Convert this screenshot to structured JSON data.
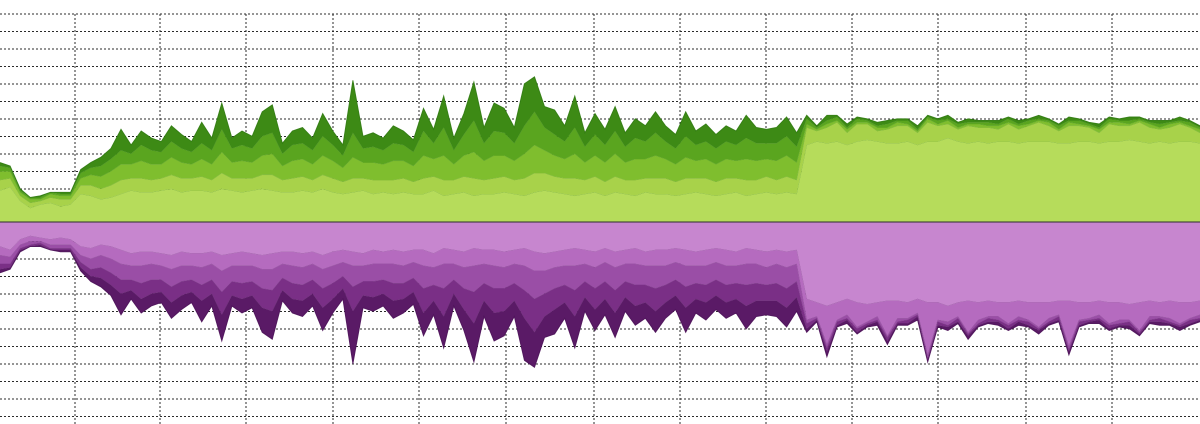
{
  "chart_data": {
    "type": "area",
    "title": "",
    "xlabel": "",
    "ylabel": "",
    "grid": true,
    "legend": "none",
    "xlim": [
      0,
      120
    ],
    "ylim": [
      -110,
      110
    ],
    "colors": {
      "upper": [
        "#b6dc5b",
        "#a8d24a",
        "#7fbe2e",
        "#5aa51f",
        "#3d8a15"
      ],
      "upper_outline": "#2f7a10",
      "lower": [
        "#c786cf",
        "#b56bbf",
        "#9a4ea6",
        "#7a2f86",
        "#5a1a66"
      ],
      "lower_outline": "#4a1056"
    },
    "series_upper": [
      {
        "values": [
          18,
          20,
          12,
          8,
          10,
          11,
          9,
          10,
          16,
          15,
          13,
          14,
          16,
          18,
          17,
          17,
          18,
          19,
          17,
          18,
          18,
          17,
          19,
          18,
          17,
          18,
          19,
          18,
          17,
          17,
          18,
          17,
          19,
          17,
          16,
          17,
          18,
          16,
          17,
          16,
          17,
          16,
          16,
          18,
          15,
          16,
          17,
          15,
          16,
          16,
          17,
          16,
          15,
          17,
          18,
          17,
          16,
          15,
          16,
          17,
          15,
          17,
          16,
          15,
          17,
          16,
          16,
          15,
          16,
          17,
          16,
          15,
          16,
          17,
          15,
          16,
          17,
          16,
          17,
          16,
          44,
          46,
          45,
          46,
          44,
          46,
          47,
          46,
          45,
          45,
          46,
          44,
          46,
          46,
          48,
          46,
          45,
          46,
          45,
          46,
          46,
          45,
          46,
          46,
          46,
          45,
          45,
          46,
          46,
          45,
          46,
          46,
          47,
          46,
          45,
          46,
          45,
          46,
          46,
          45
        ]
      },
      {
        "values": [
          6,
          5,
          3,
          3,
          2,
          3,
          4,
          3,
          5,
          6,
          6,
          7,
          8,
          7,
          8,
          7,
          7,
          8,
          8,
          7,
          8,
          7,
          9,
          7,
          8,
          7,
          8,
          9,
          7,
          8,
          8,
          7,
          8,
          8,
          7,
          8,
          7,
          8,
          7,
          8,
          8,
          7,
          9,
          8,
          9,
          8,
          9,
          10,
          8,
          9,
          9,
          8,
          10,
          11,
          10,
          9,
          9,
          10,
          8,
          9,
          8,
          9,
          8,
          9,
          8,
          9,
          9,
          8,
          9,
          8,
          9,
          8,
          9,
          8,
          9,
          8,
          9,
          8,
          9,
          8,
          10,
          6,
          9,
          11,
          7,
          10,
          9,
          6,
          8,
          10,
          9,
          7,
          11,
          9,
          8,
          7,
          10,
          8,
          9,
          7,
          10,
          8,
          9,
          11,
          9,
          7,
          10,
          9,
          8,
          6,
          10,
          9,
          8,
          11,
          9,
          7,
          9,
          10,
          8,
          6
        ]
      },
      {
        "values": [
          5,
          4,
          2,
          2,
          1,
          2,
          2,
          2,
          4,
          6,
          7,
          8,
          9,
          8,
          10,
          9,
          8,
          10,
          9,
          8,
          10,
          9,
          12,
          9,
          10,
          9,
          11,
          12,
          8,
          10,
          10,
          9,
          11,
          10,
          8,
          12,
          9,
          10,
          9,
          11,
          10,
          9,
          13,
          10,
          14,
          9,
          12,
          15,
          11,
          13,
          12,
          11,
          14,
          16,
          13,
          12,
          11,
          14,
          10,
          12,
          11,
          13,
          10,
          12,
          11,
          13,
          11,
          10,
          12,
          10,
          11,
          10,
          11,
          10,
          12,
          11,
          10,
          11,
          12,
          10,
          2,
          1,
          2,
          1,
          2,
          1,
          1,
          2,
          1,
          2,
          1,
          1,
          2,
          1,
          2,
          1,
          1,
          2,
          1,
          2,
          1,
          2,
          1,
          1,
          2,
          1,
          2,
          1,
          1,
          2,
          1,
          2,
          1,
          1,
          2,
          1,
          2,
          1,
          1,
          2
        ]
      },
      {
        "values": [
          3,
          2,
          1,
          1,
          1,
          1,
          1,
          1,
          3,
          4,
          6,
          7,
          8,
          6,
          9,
          8,
          7,
          9,
          8,
          7,
          9,
          8,
          13,
          8,
          9,
          8,
          11,
          12,
          7,
          9,
          9,
          8,
          11,
          9,
          7,
          14,
          8,
          9,
          8,
          10,
          9,
          8,
          14,
          9,
          16,
          8,
          12,
          18,
          10,
          14,
          13,
          10,
          16,
          19,
          13,
          12,
          10,
          15,
          9,
          12,
          10,
          13,
          9,
          12,
          10,
          13,
          10,
          9,
          12,
          9,
          10,
          9,
          10,
          9,
          12,
          10,
          9,
          10,
          11,
          9,
          3,
          1,
          2,
          2,
          1,
          2,
          1,
          1,
          2,
          1,
          2,
          1,
          1,
          2,
          1,
          2,
          1,
          1,
          2,
          1,
          2,
          1,
          2,
          1,
          1,
          2,
          1,
          2,
          1,
          1,
          2,
          1,
          2,
          1,
          1,
          2,
          1,
          1,
          2,
          1
        ]
      },
      {
        "values": [
          2,
          1,
          1,
          0,
          1,
          0,
          1,
          1,
          2,
          3,
          5,
          6,
          12,
          5,
          8,
          7,
          6,
          9,
          8,
          6,
          12,
          7,
          15,
          6,
          8,
          7,
          14,
          16,
          6,
          8,
          9,
          7,
          13,
          8,
          6,
          30,
          7,
          8,
          7,
          10,
          8,
          7,
          13,
          8,
          18,
          7,
          12,
          22,
          9,
          16,
          14,
          9,
          24,
          20,
          12,
          14,
          9,
          18,
          8,
          12,
          9,
          14,
          8,
          11,
          9,
          12,
          9,
          8,
          14,
          8,
          10,
          8,
          9,
          8,
          13,
          9,
          8,
          9,
          11,
          8,
          2,
          1,
          3,
          1,
          2,
          1,
          1,
          2,
          2,
          1,
          1,
          2,
          1,
          1,
          2,
          1,
          2,
          1,
          1,
          2,
          1,
          2,
          1,
          2,
          1,
          1,
          2,
          1,
          1,
          2,
          1,
          1,
          2,
          1,
          1,
          2,
          1,
          2,
          1,
          1
        ]
      }
    ],
    "series_lower": [
      {
        "values": [
          -14,
          -16,
          -10,
          -8,
          -9,
          -10,
          -9,
          -10,
          -14,
          -15,
          -13,
          -14,
          -16,
          -18,
          -17,
          -17,
          -18,
          -19,
          -17,
          -18,
          -18,
          -17,
          -19,
          -18,
          -17,
          -18,
          -19,
          -18,
          -17,
          -17,
          -18,
          -17,
          -19,
          -17,
          -16,
          -17,
          -18,
          -16,
          -17,
          -16,
          -17,
          -16,
          -16,
          -18,
          -15,
          -16,
          -17,
          -15,
          -16,
          -16,
          -17,
          -16,
          -15,
          -17,
          -18,
          -17,
          -16,
          -15,
          -16,
          -17,
          -15,
          -17,
          -16,
          -15,
          -17,
          -16,
          -16,
          -15,
          -16,
          -17,
          -16,
          -15,
          -16,
          -17,
          -15,
          -16,
          -17,
          -16,
          -17,
          -16,
          -44,
          -46,
          -48,
          -46,
          -44,
          -46,
          -47,
          -46,
          -45,
          -45,
          -46,
          -44,
          -46,
          -46,
          -48,
          -46,
          -45,
          -46,
          -45,
          -46,
          -46,
          -45,
          -46,
          -46,
          -46,
          -45,
          -45,
          -46,
          -46,
          -45,
          -46,
          -46,
          -47,
          -46,
          -45,
          -46,
          -45,
          -46,
          -46,
          -45
        ]
      },
      {
        "values": [
          -5,
          -4,
          -3,
          -3,
          -2,
          -3,
          -4,
          -3,
          -5,
          -6,
          -6,
          -7,
          -8,
          -7,
          -8,
          -7,
          -7,
          -8,
          -8,
          -7,
          -8,
          -7,
          -9,
          -7,
          -8,
          -7,
          -8,
          -9,
          -7,
          -8,
          -8,
          -7,
          -8,
          -8,
          -7,
          -8,
          -7,
          -8,
          -7,
          -8,
          -8,
          -7,
          -9,
          -8,
          -9,
          -8,
          -9,
          -10,
          -8,
          -9,
          -9,
          -8,
          -10,
          -11,
          -10,
          -9,
          -9,
          -10,
          -8,
          -9,
          -8,
          -9,
          -8,
          -9,
          -8,
          -9,
          -9,
          -8,
          -9,
          -8,
          -9,
          -8,
          -9,
          -8,
          -9,
          -8,
          -9,
          -8,
          -9,
          -8,
          -12,
          -8,
          -22,
          -10,
          -9,
          -14,
          -10,
          -8,
          -20,
          -10,
          -9,
          -8,
          -30,
          -10,
          -9,
          -8,
          -18,
          -10,
          -9,
          -8,
          -12,
          -9,
          -10,
          -14,
          -9,
          -8,
          -26,
          -10,
          -9,
          -8,
          -12,
          -10,
          -9,
          -16,
          -9,
          -8,
          -10,
          -12,
          -9,
          -8
        ]
      },
      {
        "values": [
          -5,
          -4,
          -2,
          -2,
          -1,
          -2,
          -2,
          -2,
          -4,
          -6,
          -7,
          -8,
          -9,
          -8,
          -10,
          -9,
          -8,
          -10,
          -9,
          -8,
          -10,
          -9,
          -12,
          -9,
          -10,
          -9,
          -11,
          -12,
          -8,
          -10,
          -10,
          -9,
          -11,
          -10,
          -8,
          -12,
          -9,
          -10,
          -9,
          -11,
          -10,
          -9,
          -13,
          -10,
          -14,
          -9,
          -12,
          -15,
          -11,
          -13,
          -12,
          -11,
          -14,
          -16,
          -13,
          -12,
          -11,
          -14,
          -10,
          -12,
          -11,
          -13,
          -10,
          -12,
          -11,
          -13,
          -11,
          -10,
          -12,
          -10,
          -11,
          -10,
          -11,
          -10,
          -12,
          -11,
          -10,
          -11,
          -12,
          -10,
          -2,
          -1,
          -2,
          -1,
          -2,
          -1,
          -1,
          -2,
          -1,
          -2,
          -1,
          -1,
          -2,
          -1,
          -2,
          -1,
          -1,
          -2,
          -1,
          -2,
          -1,
          -2,
          -1,
          -1,
          -2,
          -1,
          -2,
          -1,
          -1,
          -2,
          -1,
          -2,
          -1,
          -1,
          -2,
          -1,
          -2,
          -1,
          -1,
          -2
        ]
      },
      {
        "values": [
          -3,
          -2,
          -1,
          -1,
          -1,
          -1,
          -1,
          -1,
          -3,
          -4,
          -6,
          -7,
          -8,
          -6,
          -9,
          -8,
          -7,
          -9,
          -8,
          -7,
          -9,
          -8,
          -13,
          -8,
          -9,
          -8,
          -11,
          -12,
          -7,
          -9,
          -9,
          -8,
          -11,
          -9,
          -7,
          -14,
          -8,
          -9,
          -8,
          -10,
          -9,
          -8,
          -14,
          -9,
          -16,
          -8,
          -12,
          -18,
          -10,
          -14,
          -13,
          -10,
          -16,
          -19,
          -13,
          -12,
          -10,
          -15,
          -9,
          -12,
          -10,
          -13,
          -9,
          -12,
          -10,
          -13,
          -10,
          -9,
          -12,
          -9,
          -10,
          -9,
          -10,
          -9,
          -12,
          -10,
          -9,
          -10,
          -11,
          -9,
          -3,
          -1,
          -2,
          -2,
          -1,
          -2,
          -1,
          -1,
          -2,
          -1,
          -2,
          -1,
          -1,
          -2,
          -1,
          -2,
          -1,
          -1,
          -2,
          -1,
          -2,
          -1,
          -2,
          -1,
          -1,
          -2,
          -1,
          -2,
          -1,
          -1,
          -2,
          -1,
          -2,
          -1,
          -1,
          -2,
          -1,
          -1,
          -2,
          -1
        ]
      },
      {
        "values": [
          -2,
          -1,
          -1,
          0,
          -1,
          0,
          -1,
          -1,
          -2,
          -3,
          -5,
          -6,
          -12,
          -5,
          -8,
          -7,
          -6,
          -9,
          -8,
          -6,
          -12,
          -7,
          -15,
          -6,
          -8,
          -7,
          -14,
          -16,
          -6,
          -8,
          -9,
          -7,
          -13,
          -8,
          -6,
          -30,
          -7,
          -8,
          -7,
          -10,
          -8,
          -7,
          -13,
          -8,
          -18,
          -7,
          -12,
          -22,
          -9,
          -16,
          -14,
          -9,
          -24,
          -20,
          -12,
          -14,
          -9,
          -18,
          -8,
          -12,
          -9,
          -14,
          -8,
          -11,
          -9,
          -12,
          -9,
          -8,
          -14,
          -8,
          -10,
          -8,
          -9,
          -8,
          -13,
          -9,
          -8,
          -9,
          -11,
          -8,
          -2,
          -1,
          -3,
          -1,
          -2,
          -1,
          -1,
          -2,
          -2,
          -1,
          -1,
          -2,
          -1,
          -1,
          -2,
          -1,
          -2,
          -1,
          -1,
          -2,
          -1,
          -2,
          -1,
          -2,
          -1,
          -1,
          -2,
          -1,
          -1,
          -2,
          -1,
          -1,
          -2,
          -1,
          -1,
          -2,
          -1,
          -2,
          -1,
          -1
        ]
      }
    ]
  }
}
